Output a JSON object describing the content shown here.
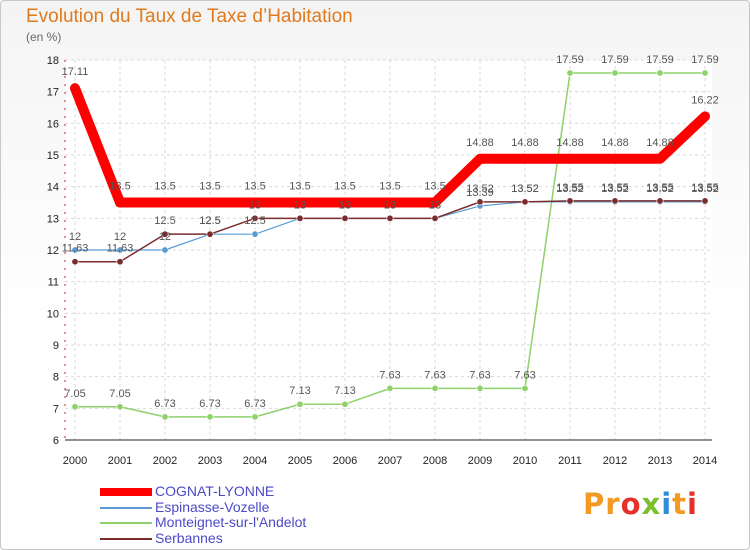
{
  "chart_data": {
    "type": "line",
    "title": "Evolution du Taux de Taxe d’Habitation",
    "subtitle": "(en %)",
    "x": [
      "2000",
      "2001",
      "2002",
      "2003",
      "2004",
      "2005",
      "2006",
      "2007",
      "2008",
      "2009",
      "2010",
      "2011",
      "2012",
      "2013",
      "2014"
    ],
    "ylim": [
      6,
      18
    ],
    "yticks": [
      6,
      7,
      8,
      9,
      10,
      11,
      12,
      13,
      14,
      15,
      16,
      17,
      18
    ],
    "grid": true,
    "legend_position": "bottom-left",
    "series": [
      {
        "name": "COGNAT-LYONNE",
        "color": "#ff0000",
        "values": [
          17.11,
          13.5,
          13.5,
          13.5,
          13.5,
          13.5,
          13.5,
          13.5,
          13.5,
          14.88,
          14.88,
          14.88,
          14.88,
          14.88,
          16.22
        ],
        "labels": [
          "17.11",
          "13.5",
          "13.5",
          "13.5",
          "13.5",
          "13.5",
          "13.5",
          "13.5",
          "13.5",
          "14.88",
          "14.88",
          "14.88",
          "14.88",
          "14.88",
          "16.22"
        ]
      },
      {
        "name": "Espinasse-Vozelle",
        "color": "#5b9bd5",
        "values": [
          12,
          12,
          12,
          12.5,
          12.5,
          13,
          13,
          13,
          13,
          13.39,
          13.52,
          13.52,
          13.52,
          13.52,
          13.52
        ],
        "labels": [
          "12",
          "12",
          "12",
          "12.5",
          "12.5",
          "13",
          "13",
          "13",
          "13",
          "13.39",
          "13.52",
          "13.52",
          "13.52",
          "13.52",
          "13.52"
        ]
      },
      {
        "name": "Monteignet-sur-l'Andelot",
        "color": "#8fd16b",
        "values": [
          7.05,
          7.05,
          6.73,
          6.73,
          6.73,
          7.13,
          7.13,
          7.63,
          7.63,
          7.63,
          7.63,
          17.59,
          17.59,
          17.59,
          17.59
        ],
        "labels": [
          "7.05",
          "7.05",
          "6.73",
          "6.73",
          "6.73",
          "7.13",
          "7.13",
          "7.63",
          "7.63",
          "7.63",
          "7.63",
          "17.59",
          "17.59",
          "17.59",
          "17.59"
        ]
      },
      {
        "name": "Serbannes",
        "color": "#7b2d2d",
        "values": [
          11.63,
          11.63,
          12.5,
          12.5,
          13,
          13,
          13,
          13,
          13,
          13.52,
          13.52,
          13.55,
          13.55,
          13.55,
          13.55
        ],
        "labels": [
          "11.63",
          "11.63",
          "12.5",
          "12.5",
          "13",
          "13",
          "13",
          "13",
          "13",
          "13.52",
          "13.52",
          "13.55",
          "13.55",
          "13.55",
          "13.55"
        ]
      }
    ]
  },
  "logo": {
    "p": "Pr",
    "o": "o",
    "x": "x",
    "i1": "i",
    "t": "t",
    "i2": "i"
  }
}
